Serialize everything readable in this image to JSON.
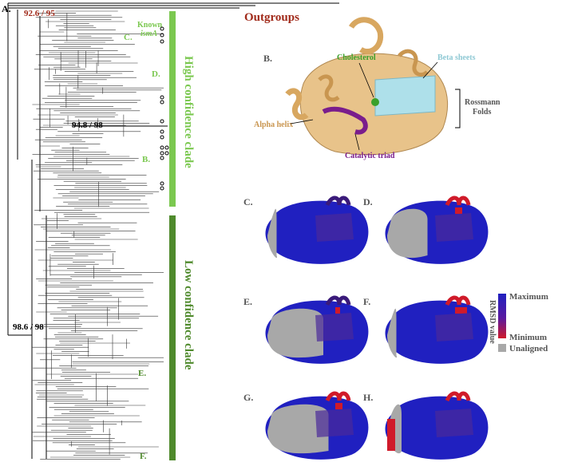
{
  "panel_a": {
    "label": "A.",
    "bootstrap_top": "92.6 / 95",
    "bootstrap_mid": "94.8 / 98",
    "bootstrap_root": "98.6 / 98",
    "outgroups": "Outgroups",
    "known_line1": "Known",
    "known_line2": "ismA",
    "tip_c": "C.",
    "tip_d": "D.",
    "tip_b": "B.",
    "tip_e": "E.",
    "tip_f": "F.",
    "high_clade": "High confidence clade",
    "low_clade": "Low confidence clade",
    "colors": {
      "high": "#7bc850",
      "low": "#4f8a2c",
      "outgroup": "#a02a1a"
    }
  },
  "panel_b": {
    "label": "B.",
    "cholesterol": "Cholesterol",
    "beta_sheets": "Beta sheets",
    "rossmann_1": "Rossmann",
    "rossmann_2": "Folds",
    "alpha_helix": "Alpha helix",
    "catalytic_triad": "Catalytic triad",
    "colors": {
      "helix": "#e8c38a",
      "sheet": "#aee0ea",
      "triad": "#7a1d8c",
      "cholesterol": "#3aa02a"
    }
  },
  "structures": [
    {
      "label": "C."
    },
    {
      "label": "D."
    },
    {
      "label": "E."
    },
    {
      "label": "F."
    },
    {
      "label": "G."
    },
    {
      "label": "H."
    }
  ],
  "legend": {
    "title": "RMSD value",
    "maximum": "Maximum",
    "minimum": "Minimum",
    "unaligned": "Unaligned",
    "colors": {
      "max": "#2020c0",
      "min": "#d01a2a",
      "unaligned": "#a8a8a8"
    }
  }
}
